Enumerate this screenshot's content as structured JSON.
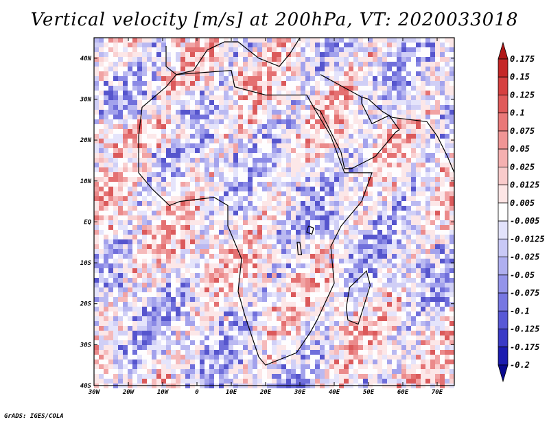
{
  "header": {
    "title": "Vertical velocity [m/s] at 200hPa, VT: 2020033018"
  },
  "footer": {
    "credit": "GrADS: IGES/COLA"
  },
  "chart_data": {
    "type": "heatmap",
    "title": "Vertical velocity [m/s] at 200hPa, VT: 2020033018",
    "variable": "Vertical velocity",
    "units": "m/s",
    "level": "200hPa",
    "valid_time": "2020033018",
    "x_range": [
      -30,
      75
    ],
    "y_range": [
      -40,
      45
    ],
    "x_ticks": [
      -30,
      -20,
      -10,
      0,
      10,
      20,
      30,
      40,
      50,
      60,
      70
    ],
    "x_tick_labels": [
      "30W",
      "20W",
      "10W",
      "0",
      "10E",
      "20E",
      "30E",
      "40E",
      "50E",
      "60E",
      "70E"
    ],
    "y_ticks": [
      -40,
      -30,
      -20,
      -10,
      0,
      10,
      20,
      30,
      40
    ],
    "y_tick_labels": [
      "40S",
      "30S",
      "20S",
      "10S",
      "EQ",
      "10N",
      "20N",
      "30N",
      "40N"
    ],
    "colorbar": {
      "labels": [
        "0.175",
        "0.15",
        "0.125",
        "0.1",
        "0.075",
        "0.05",
        "0.025",
        "0.0125",
        "0.005",
        "-0.005",
        "-0.0125",
        "-0.025",
        "-0.05",
        "-0.075",
        "-0.1",
        "-0.125",
        "-0.175",
        "-0.2"
      ],
      "colors": [
        "#b01818",
        "#c52727",
        "#d64040",
        "#e05a5a",
        "#e97878",
        "#f09595",
        "#f5b0b0",
        "#f9cbcb",
        "#fde5e5",
        "#ffffff",
        "#e2e2fb",
        "#c9c9f6",
        "#afaff0",
        "#9494ea",
        "#7777e2",
        "#5858d6",
        "#3a3ac6",
        "#1c1cb0",
        "#0a0a90"
      ],
      "extend": "both"
    }
  }
}
